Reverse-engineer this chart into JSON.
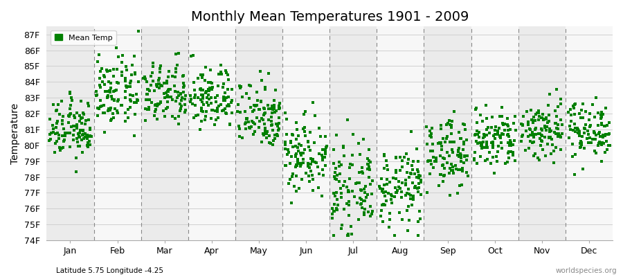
{
  "title": "Monthly Mean Temperatures 1901 - 2009",
  "ylabel": "Temperature",
  "subtitle": "Latitude 5.75 Longitude -4.25",
  "watermark": "worldspecies.org",
  "ylim": [
    74,
    87.5
  ],
  "yticks": [
    74,
    75,
    76,
    77,
    78,
    79,
    80,
    81,
    82,
    83,
    84,
    85,
    86,
    87
  ],
  "ytick_labels": [
    "74F",
    "75F",
    "76F",
    "77F",
    "78F",
    "79F",
    "80F",
    "81F",
    "82F",
    "83F",
    "84F",
    "85F",
    "86F",
    "87F"
  ],
  "month_names": [
    "Jan",
    "Feb",
    "Mar",
    "Apr",
    "May",
    "Jun",
    "Jul",
    "Aug",
    "Sep",
    "Oct",
    "Nov",
    "Dec"
  ],
  "monthly_means": [
    81.0,
    83.3,
    83.2,
    83.0,
    82.0,
    79.5,
    77.2,
    77.3,
    79.5,
    80.3,
    81.0,
    81.0
  ],
  "monthly_stds": [
    0.9,
    1.1,
    1.0,
    1.0,
    1.1,
    1.3,
    1.3,
    1.2,
    1.1,
    1.0,
    1.0,
    0.9
  ],
  "n_years": 109,
  "dot_color": "#008000",
  "dot_size": 9,
  "background_color": "#ffffff",
  "stripe_even_color": "#ebebeb",
  "stripe_odd_color": "#f7f7f7",
  "grid_color": "#d0d0d0",
  "dashed_line_color": "#888888",
  "title_fontsize": 14,
  "axis_label_fontsize": 10,
  "tick_fontsize": 9,
  "legend_fontsize": 8
}
